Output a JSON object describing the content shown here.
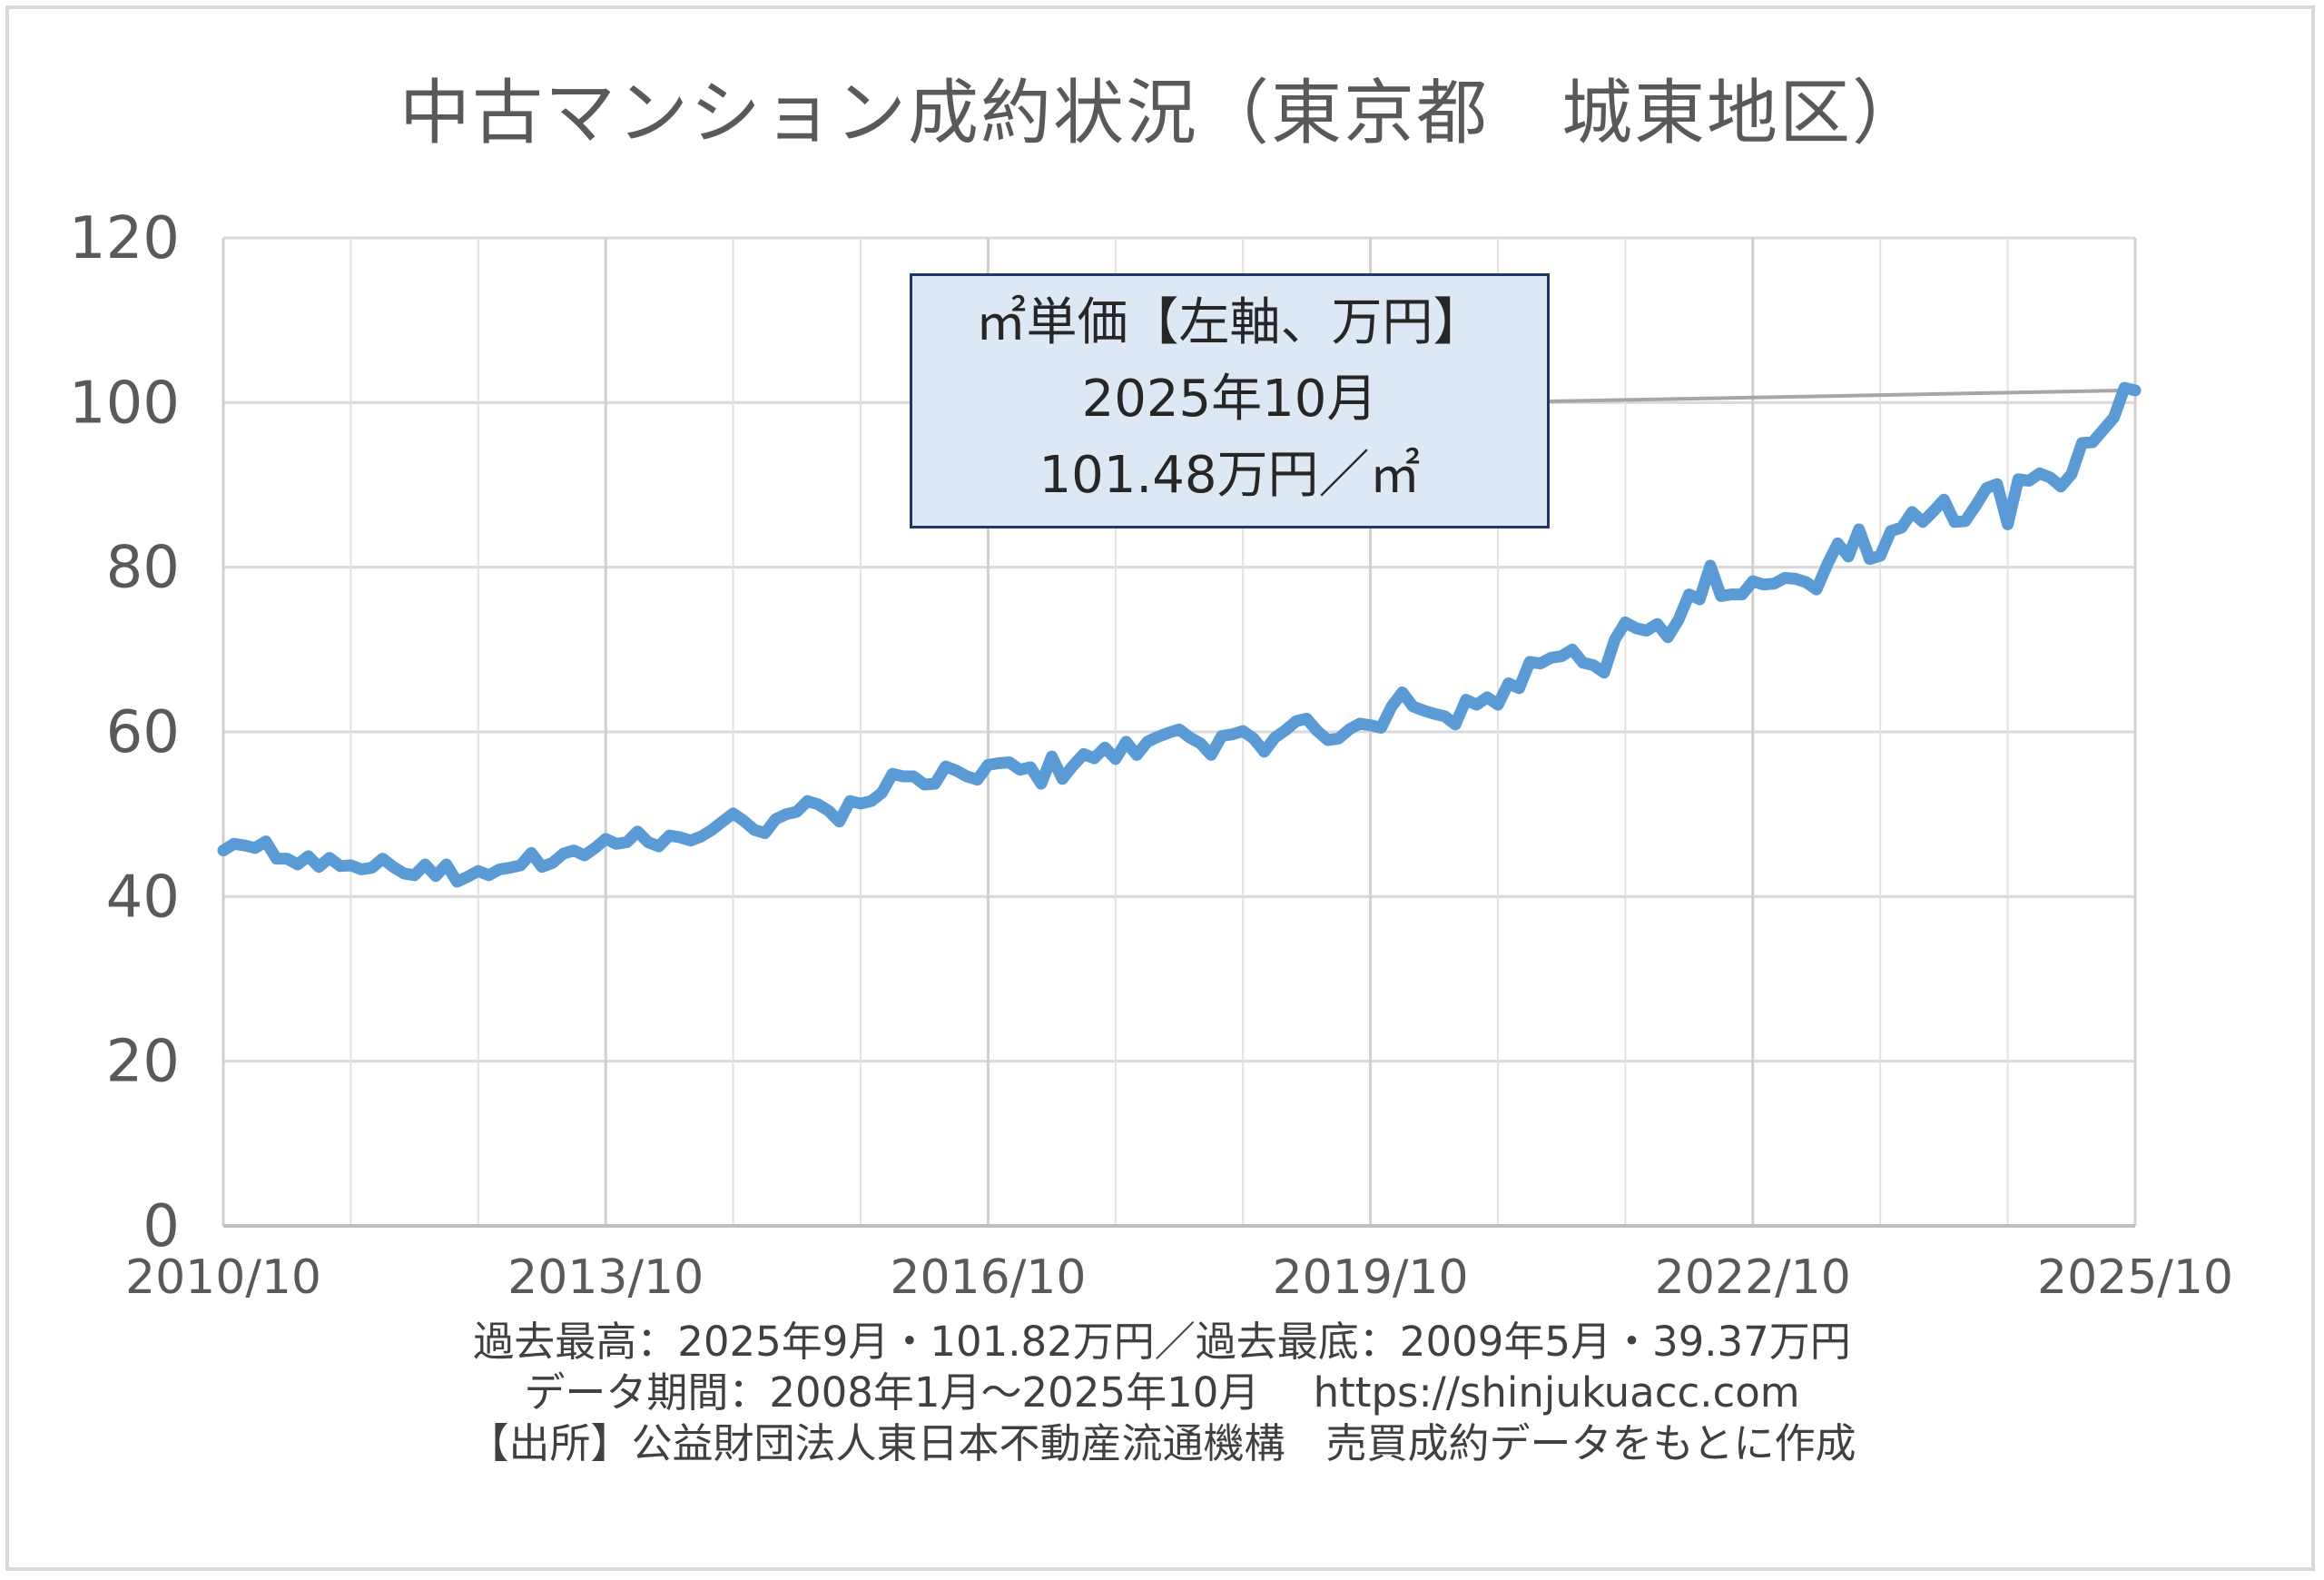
{
  "title": "中古マンション成約状況（東京都　城東地区）",
  "chart_data": {
    "type": "line",
    "title": "中古マンション成約状況（東京都　城東地区）",
    "x_tick_labels": [
      "2010/10",
      "2013/10",
      "2016/10",
      "2019/10",
      "2022/10",
      "2025/10"
    ],
    "ylim": [
      0,
      120
    ],
    "y_ticks": [
      0,
      20,
      40,
      60,
      80,
      100,
      120
    ],
    "grid": true,
    "line_color": "#5b9bd5",
    "series": [
      {
        "x_start": "2010/10",
        "x_end": "2025/10",
        "values": [
          45.6,
          46.4,
          46.2,
          45.9,
          46.7,
          44.6,
          44.6,
          43.9,
          44.9,
          43.6,
          44.7,
          43.7,
          43.8,
          43.3,
          43.5,
          44.6,
          43.6,
          42.8,
          42.6,
          43.9,
          42.5,
          43.9,
          41.8,
          42.4,
          43.1,
          42.6,
          43.3,
          43.5,
          43.8,
          45.3,
          43.6,
          44.1,
          45.2,
          45.6,
          45.0,
          45.9,
          47.0,
          46.4,
          46.6,
          47.9,
          46.6,
          46.1,
          47.4,
          47.2,
          46.8,
          47.3,
          48.1,
          49.1,
          50.1,
          49.2,
          48.1,
          47.7,
          49.4,
          50.0,
          50.3,
          51.6,
          51.2,
          50.4,
          49.1,
          51.6,
          51.3,
          51.6,
          52.6,
          54.9,
          54.6,
          54.6,
          53.6,
          53.7,
          55.8,
          55.3,
          54.6,
          54.2,
          56.0,
          56.2,
          56.3,
          55.4,
          55.7,
          53.7,
          57.0,
          54.3,
          55.9,
          57.3,
          56.8,
          58.1,
          56.7,
          58.8,
          57.2,
          58.8,
          59.4,
          59.9,
          60.3,
          59.3,
          58.6,
          57.2,
          59.5,
          59.7,
          60.1,
          59.2,
          57.6,
          59.3,
          60.2,
          61.3,
          61.6,
          60.1,
          59.0,
          59.2,
          60.3,
          61.0,
          60.8,
          60.5,
          63.1,
          64.8,
          63.1,
          62.6,
          62.2,
          61.9,
          60.9,
          63.9,
          63.3,
          64.2,
          63.3,
          65.9,
          65.3,
          68.5,
          68.3,
          69.0,
          69.2,
          70.0,
          68.4,
          68.1,
          67.2,
          71.2,
          73.3,
          72.6,
          72.3,
          73.1,
          71.5,
          73.6,
          76.7,
          76.1,
          80.2,
          76.5,
          76.7,
          76.7,
          78.3,
          77.9,
          78.0,
          78.7,
          78.6,
          78.2,
          77.3,
          80.3,
          82.9,
          81.3,
          84.6,
          81.0,
          81.4,
          84.4,
          84.8,
          86.7,
          85.5,
          86.8,
          88.2,
          85.5,
          85.6,
          87.5,
          89.6,
          90.1,
          85.2,
          90.7,
          90.5,
          91.4,
          90.9,
          89.8,
          91.3,
          95.1,
          95.2,
          96.7,
          98.2,
          101.8,
          101.48
        ]
      }
    ],
    "annotation": {
      "line1": "㎡単価【左軸、万円】",
      "line2": "2025年10月",
      "line3": "101.48万円／㎡"
    }
  },
  "footer": {
    "line1": "過去最高：2025年9月・101.82万円／過去最底：2009年5月・39.37万円",
    "line2": "データ期間：2008年1月～2025年10月　 https://shinjukuacc.com",
    "line3": "【出所】公益財団法人東日本不動産流通機構　売買成約データをもとに作成"
  }
}
